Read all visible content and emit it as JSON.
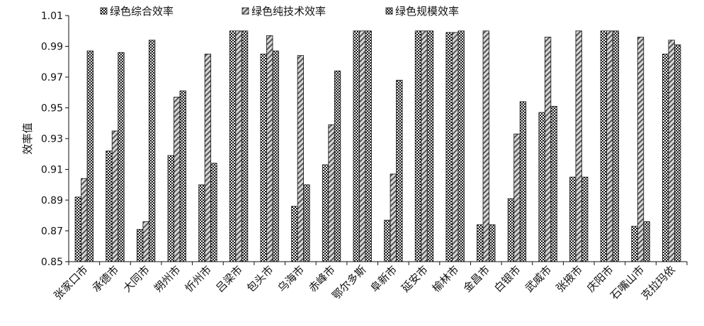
{
  "chart_data": {
    "type": "bar",
    "ylabel": "效率值",
    "ylim": [
      0.85,
      1.01
    ],
    "yticks": [
      "0.85",
      "0.87",
      "0.89",
      "0.91",
      "0.93",
      "0.95",
      "0.97",
      "0.99",
      "1.01"
    ],
    "grid": false,
    "legend_position": "top",
    "categories": [
      "张家口市",
      "承德市",
      "大同市",
      "朔州市",
      "忻州市",
      "吕梁市",
      "包头市",
      "乌海市",
      "赤峰市",
      "鄂尔多斯",
      "阜新市",
      "延安市",
      "榆林市",
      "金昌市",
      "白银市",
      "武威市",
      "张掖市",
      "庆阳市",
      "石嘴山市",
      "克拉玛依"
    ],
    "series": [
      {
        "name": "绿色综合效率",
        "pattern": "dots",
        "values": [
          0.892,
          0.922,
          0.871,
          0.919,
          0.9,
          1.0,
          0.985,
          0.886,
          0.913,
          1.0,
          0.877,
          1.0,
          0.999,
          0.874,
          0.891,
          0.947,
          0.905,
          1.0,
          0.873,
          0.985
        ]
      },
      {
        "name": "绿色纯技术效率",
        "pattern": "diagonal",
        "values": [
          0.904,
          0.935,
          0.876,
          0.957,
          0.985,
          1.0,
          0.997,
          0.984,
          0.939,
          1.0,
          0.907,
          1.0,
          0.999,
          1.0,
          0.933,
          0.996,
          1.0,
          1.0,
          0.996,
          0.994
        ]
      },
      {
        "name": "绿色规模效率",
        "pattern": "checker",
        "values": [
          0.987,
          0.986,
          0.994,
          0.961,
          0.914,
          1.0,
          0.987,
          0.9,
          0.974,
          1.0,
          0.968,
          1.0,
          1.0,
          0.874,
          0.954,
          0.951,
          0.905,
          1.0,
          0.876,
          0.991
        ]
      }
    ]
  }
}
